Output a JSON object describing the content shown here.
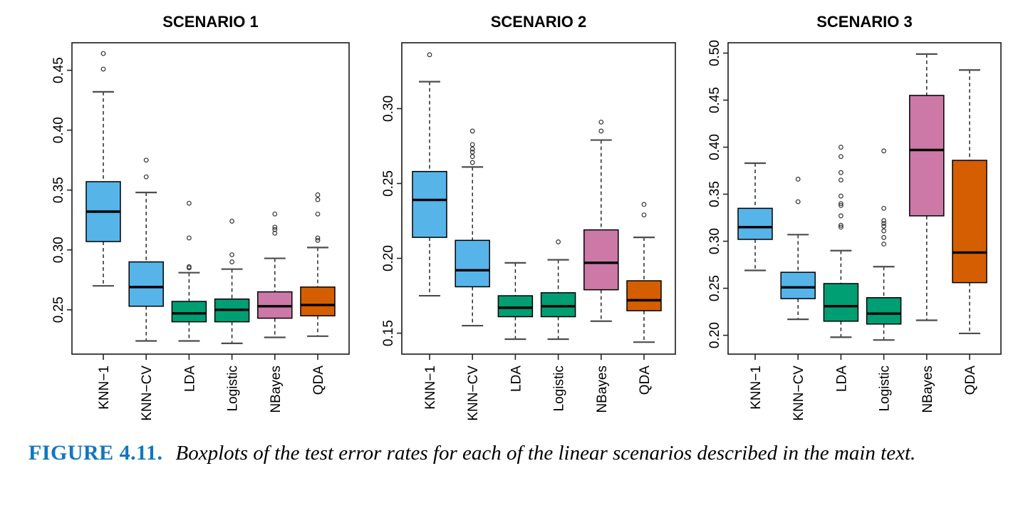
{
  "figure": {
    "caption_label": "FIGURE 4.11.",
    "caption_text": "Boxplots of the test error rates for each of the linear scenarios described in the main text.",
    "caption_label_color": "#1276be"
  },
  "palette": {
    "knn_blue": "#56B4E9",
    "lda_logistic_green": "#009E73",
    "nbayes_pink": "#CC79A7",
    "qda_orange": "#D55E00",
    "frame": "#262626",
    "whisker_cap": "#4d4d4d"
  },
  "chart_data": {
    "type": "boxplot",
    "grid": false,
    "categories": [
      "KNN−1",
      "KNN−CV",
      "LDA",
      "Logistic",
      "NBayes",
      "QDA"
    ],
    "panels": [
      {
        "title": "SCENARIO 1",
        "ylim": [
          0.213,
          0.473
        ],
        "yticks": [
          "0.25",
          "0.30",
          "0.35",
          "0.40",
          "0.45"
        ],
        "boxes": [
          {
            "label": "KNN−1",
            "color": "#56B4E9",
            "whislo": 0.27,
            "q1": 0.307,
            "med": 0.332,
            "q3": 0.357,
            "whishi": 0.432,
            "outliers": [
              0.451,
              0.464
            ]
          },
          {
            "label": "KNN−CV",
            "color": "#56B4E9",
            "whislo": 0.224,
            "q1": 0.253,
            "med": 0.269,
            "q3": 0.29,
            "whishi": 0.348,
            "outliers": [
              0.361,
              0.375
            ]
          },
          {
            "label": "LDA",
            "color": "#009E73",
            "whislo": 0.224,
            "q1": 0.24,
            "med": 0.247,
            "q3": 0.257,
            "whishi": 0.281,
            "outliers": [
              0.285,
              0.286,
              0.31,
              0.339
            ]
          },
          {
            "label": "Logistic",
            "color": "#009E73",
            "whislo": 0.222,
            "q1": 0.24,
            "med": 0.25,
            "q3": 0.259,
            "whishi": 0.284,
            "outliers": [
              0.29,
              0.296,
              0.324
            ]
          },
          {
            "label": "NBayes",
            "color": "#CC79A7",
            "whislo": 0.227,
            "q1": 0.243,
            "med": 0.253,
            "q3": 0.265,
            "whishi": 0.293,
            "outliers": [
              0.314,
              0.317,
              0.319,
              0.33
            ]
          },
          {
            "label": "QDA",
            "color": "#D55E00",
            "whislo": 0.228,
            "q1": 0.245,
            "med": 0.254,
            "q3": 0.269,
            "whishi": 0.302,
            "outliers": [
              0.308,
              0.31,
              0.33,
              0.342,
              0.346
            ]
          }
        ]
      },
      {
        "title": "SCENARIO 2",
        "ylim": [
          0.136,
          0.344
        ],
        "yticks": [
          "0.15",
          "0.20",
          "0.25",
          "0.30"
        ],
        "boxes": [
          {
            "label": "KNN−1",
            "color": "#56B4E9",
            "whislo": 0.175,
            "q1": 0.214,
            "med": 0.239,
            "q3": 0.258,
            "whishi": 0.318,
            "outliers": [
              0.336
            ]
          },
          {
            "label": "KNN−CV",
            "color": "#56B4E9",
            "whislo": 0.155,
            "q1": 0.181,
            "med": 0.192,
            "q3": 0.212,
            "whishi": 0.261,
            "outliers": [
              0.264,
              0.268,
              0.271,
              0.273,
              0.276,
              0.285
            ]
          },
          {
            "label": "LDA",
            "color": "#009E73",
            "whislo": 0.146,
            "q1": 0.161,
            "med": 0.167,
            "q3": 0.175,
            "whishi": 0.197,
            "outliers": []
          },
          {
            "label": "Logistic",
            "color": "#009E73",
            "whislo": 0.146,
            "q1": 0.161,
            "med": 0.168,
            "q3": 0.177,
            "whishi": 0.199,
            "outliers": [
              0.211
            ]
          },
          {
            "label": "NBayes",
            "color": "#CC79A7",
            "whislo": 0.158,
            "q1": 0.179,
            "med": 0.197,
            "q3": 0.219,
            "whishi": 0.279,
            "outliers": [
              0.285,
              0.291
            ]
          },
          {
            "label": "QDA",
            "color": "#D55E00",
            "whislo": 0.144,
            "q1": 0.165,
            "med": 0.172,
            "q3": 0.185,
            "whishi": 0.214,
            "outliers": [
              0.229,
              0.236
            ]
          }
        ]
      },
      {
        "title": "SCENARIO 3",
        "ylim": [
          0.18,
          0.511
        ],
        "yticks": [
          "0.20",
          "0.25",
          "0.30",
          "0.35",
          "0.40",
          "0.45",
          "0.50"
        ],
        "boxes": [
          {
            "label": "KNN−1",
            "color": "#56B4E9",
            "whislo": 0.269,
            "q1": 0.302,
            "med": 0.315,
            "q3": 0.335,
            "whishi": 0.383,
            "outliers": []
          },
          {
            "label": "KNN−CV",
            "color": "#56B4E9",
            "whislo": 0.217,
            "q1": 0.239,
            "med": 0.251,
            "q3": 0.267,
            "whishi": 0.307,
            "outliers": [
              0.342,
              0.366
            ]
          },
          {
            "label": "LDA",
            "color": "#009E73",
            "whislo": 0.198,
            "q1": 0.215,
            "med": 0.231,
            "q3": 0.255,
            "whishi": 0.29,
            "outliers": [
              0.315,
              0.317,
              0.327,
              0.338,
              0.34,
              0.348,
              0.365,
              0.373,
              0.39,
              0.4
            ]
          },
          {
            "label": "Logistic",
            "color": "#009E73",
            "whislo": 0.195,
            "q1": 0.212,
            "med": 0.223,
            "q3": 0.24,
            "whishi": 0.273,
            "outliers": [
              0.297,
              0.304,
              0.311,
              0.316,
              0.319,
              0.322,
              0.335,
              0.396
            ]
          },
          {
            "label": "NBayes",
            "color": "#CC79A7",
            "whislo": 0.216,
            "q1": 0.327,
            "med": 0.397,
            "q3": 0.455,
            "whishi": 0.499,
            "outliers": []
          },
          {
            "label": "QDA",
            "color": "#D55E00",
            "whislo": 0.202,
            "q1": 0.256,
            "med": 0.288,
            "q3": 0.386,
            "whishi": 0.482,
            "outliers": []
          }
        ]
      }
    ]
  }
}
